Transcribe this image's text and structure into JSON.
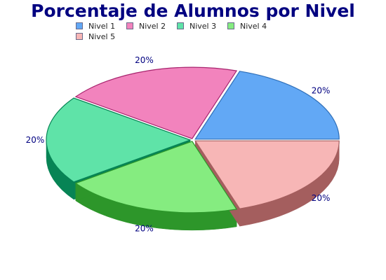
{
  "chart_data": {
    "type": "pie",
    "title": "Porcentaje de Alumnos por Nivel",
    "categories": [
      "Nivel 1",
      "Nivel 2",
      "Nivel 3",
      "Nivel 4",
      "Nivel 5"
    ],
    "values": [
      20,
      20,
      20,
      20,
      20
    ],
    "data_labels": [
      "20%",
      "20%",
      "20%",
      "20%",
      "20%"
    ],
    "colors": [
      "#62a8f5",
      "#f283bd",
      "#5fe3a8",
      "#85ec80",
      "#f7b6b6"
    ],
    "side_colors": [
      "#2f6fb8",
      "#a8246e",
      "#078455",
      "#2d962a",
      "#a45e5e"
    ],
    "legend_position": "top",
    "style": "3d-exploded"
  }
}
